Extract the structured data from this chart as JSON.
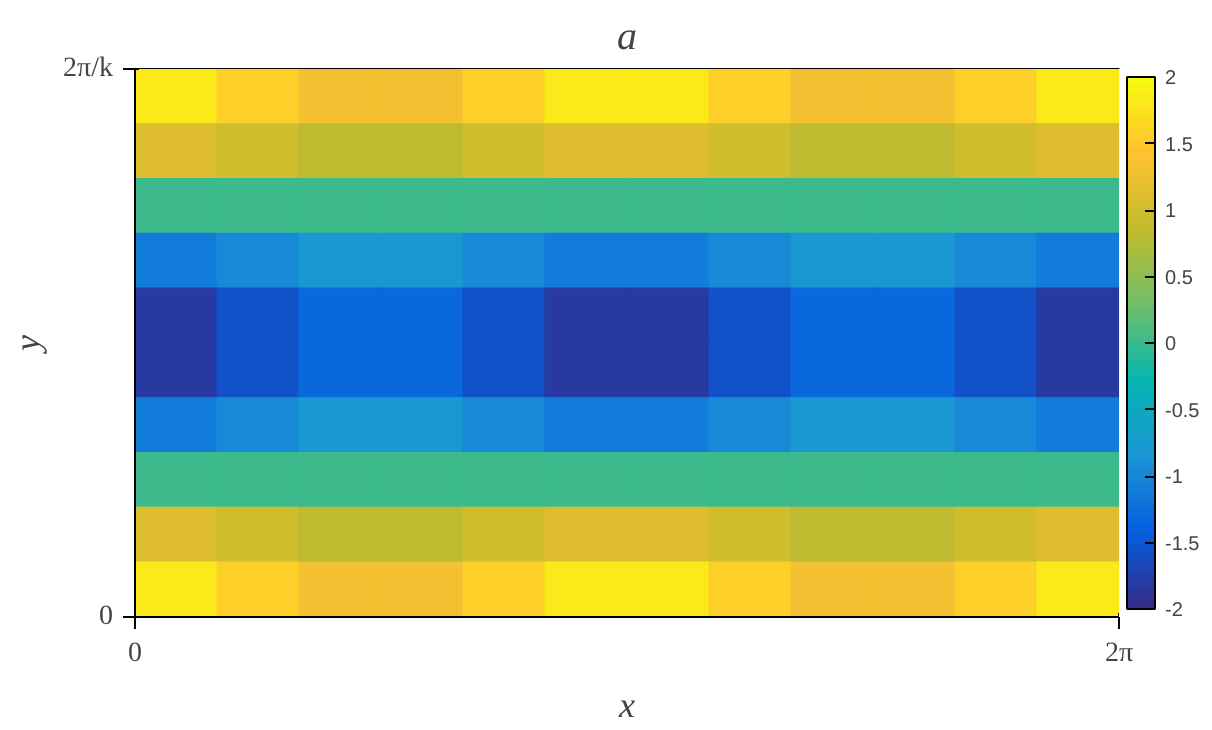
{
  "chart_data": {
    "type": "heatmap",
    "title": "a",
    "xlabel": "x",
    "ylabel": "y",
    "xlim": [
      0,
      6.2832
    ],
    "xticks": [
      {
        "value": 0,
        "label": "0"
      },
      {
        "value": 6.2832,
        "label": "2π"
      }
    ],
    "y_categories": [
      null,
      null,
      null,
      null,
      null,
      null,
      null,
      null,
      null,
      null
    ],
    "annotations": [
      "2π/k",
      "0"
    ],
    "cells": [
      [
        1.82,
        1.57,
        1.32,
        1.32,
        1.57,
        1.82,
        1.82,
        1.57,
        1.32,
        1.32,
        1.57,
        1.82
      ],
      [
        1.12,
        0.97,
        0.82,
        0.82,
        0.97,
        1.12,
        1.12,
        0.97,
        0.82,
        0.82,
        0.97,
        1.12
      ],
      [
        0,
        0,
        0,
        0,
        0,
        0,
        0,
        0,
        0,
        0,
        0,
        0
      ],
      [
        -1.12,
        -0.97,
        -0.82,
        -0.82,
        -0.97,
        -1.12,
        -1.12,
        -0.97,
        -0.82,
        -0.82,
        -0.97,
        -1.12
      ],
      [
        -1.82,
        -1.57,
        -1.32,
        -1.32,
        -1.57,
        -1.82,
        -1.82,
        -1.57,
        -1.32,
        -1.32,
        -1.57,
        -1.82
      ],
      [
        -1.82,
        -1.57,
        -1.32,
        -1.32,
        -1.57,
        -1.82,
        -1.82,
        -1.57,
        -1.32,
        -1.32,
        -1.57,
        -1.82
      ],
      [
        -1.12,
        -0.97,
        -0.82,
        -0.82,
        -0.97,
        -1.12,
        -1.12,
        -0.97,
        -0.82,
        -0.82,
        -0.97,
        -1.12
      ],
      [
        0,
        0,
        0,
        0,
        0,
        0,
        0,
        0,
        0,
        0,
        0,
        0
      ],
      [
        1.12,
        0.97,
        0.82,
        0.82,
        0.97,
        1.12,
        1.12,
        0.97,
        0.82,
        0.82,
        0.97,
        1.12
      ],
      [
        1.82,
        1.57,
        1.32,
        1.32,
        1.57,
        1.82,
        1.82,
        1.57,
        1.32,
        1.32,
        1.57,
        1.82
      ]
    ],
    "clim": [
      -2,
      2
    ],
    "cticks": [
      -2,
      -1.5,
      -1,
      -0.5,
      0,
      0.5,
      1,
      1.5,
      2
    ]
  }
}
